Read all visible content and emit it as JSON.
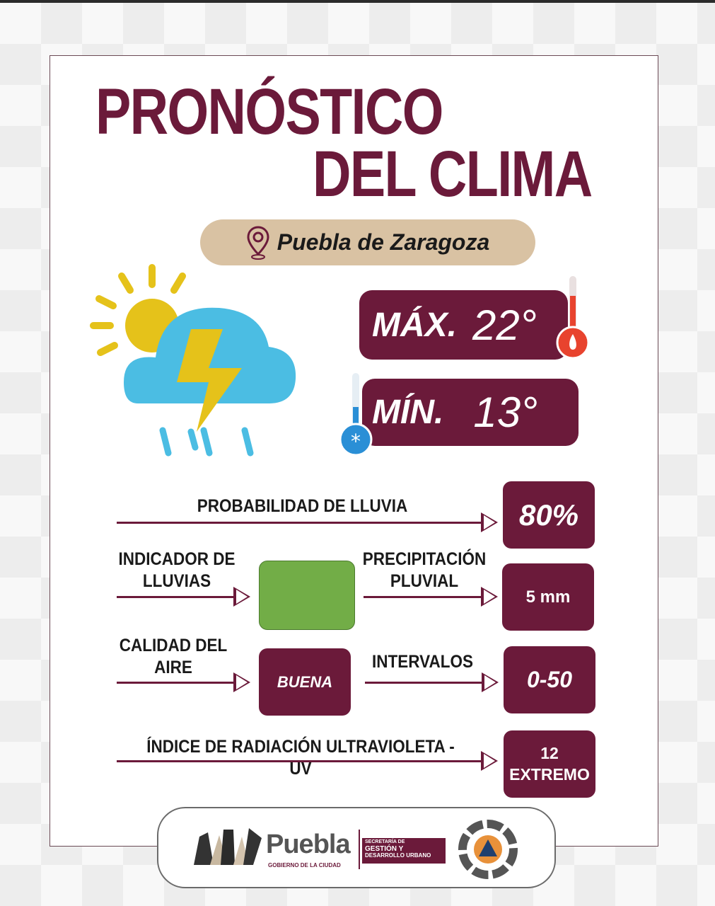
{
  "title": {
    "line1": "PRONÓSTICO",
    "line2": "DEL CLIMA"
  },
  "location": {
    "name": "Puebla de Zaragoza",
    "icon": "map-pin-icon"
  },
  "weather_icon": "sun-cloud-thunderstorm-rain-icon",
  "temperature": {
    "max_label": "MÁX.",
    "max_value": "22°",
    "min_label": "MÍN.",
    "min_value": "13°",
    "max_icon": "thermometer-hot-icon",
    "min_icon": "thermometer-cold-icon"
  },
  "rain_probability": {
    "label": "PROBABILIDAD DE LLUVIA",
    "value": "80%"
  },
  "rain_indicator": {
    "label_line1": "INDICADOR DE",
    "label_line2": "LLUVIAS",
    "color": "#72ad47"
  },
  "precipitation": {
    "label_line1": "PRECIPITACIÓN",
    "label_line2": "PLUVIAL",
    "value": "5 mm"
  },
  "air_quality": {
    "label_line1": "CALIDAD DEL",
    "label_line2": "AIRE",
    "value": "BUENA"
  },
  "intervals": {
    "label": "INTERVALOS",
    "value": "0-50"
  },
  "uv": {
    "label": "ÍNDICE DE RADIACIÓN ULTRAVIOLETA - UV",
    "value": "12",
    "level": "EXTREMO"
  },
  "footer": {
    "logo_text": "Puebla",
    "logo_sub": "GOBIERNO DE LA CIUDAD",
    "secretaria_line1": "SECRETARÍA DE",
    "secretaria_line2": "GESTIÓN Y",
    "secretaria_line3": "DESARROLLO URBANO"
  },
  "colors": {
    "maroon": "#6b1a3a",
    "tan": "#d9c2a3",
    "green": "#72ad47",
    "cloud": "#4bbde3",
    "bolt": "#e5c21a"
  }
}
